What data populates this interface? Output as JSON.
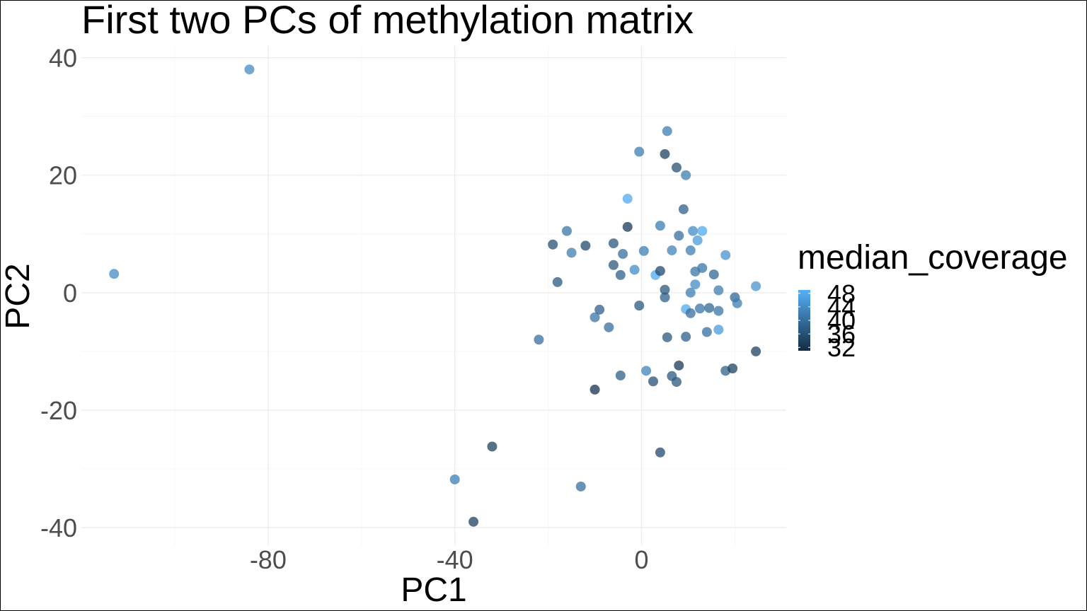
{
  "chart_data": {
    "type": "scatter",
    "title": "First two PCs of methylation matrix",
    "xlabel": "PC1",
    "ylabel": "PC2",
    "xlim": [
      -120,
      31
    ],
    "ylim": [
      -43,
      42
    ],
    "x_ticks": [
      -80,
      -40,
      0
    ],
    "x_tick_labels": [
      "-80",
      "-40",
      "0"
    ],
    "y_ticks": [
      -40,
      -20,
      0,
      20,
      40
    ],
    "y_tick_labels": [
      "-40",
      "-20",
      "0",
      "20",
      "40"
    ],
    "grid": true,
    "legend": {
      "title": "median_coverage",
      "placement": "right",
      "type": "colorbar",
      "ticks": [
        32,
        36,
        40,
        44,
        48
      ],
      "tick_labels": [
        "32",
        "36",
        "40",
        "44",
        "48"
      ],
      "range": [
        31,
        49
      ],
      "colors": [
        "#132b43",
        "#56b1f7"
      ]
    },
    "point_opacity": 0.75,
    "points": [
      {
        "x": -113,
        "y": 3.2,
        "c": 44
      },
      {
        "x": -84,
        "y": 38,
        "c": 44
      },
      {
        "x": -40,
        "y": -31.8,
        "c": 42
      },
      {
        "x": -36,
        "y": -39,
        "c": 34
      },
      {
        "x": -32,
        "y": -26.2,
        "c": 34
      },
      {
        "x": -22,
        "y": -8,
        "c": 40
      },
      {
        "x": -19,
        "y": 8.2,
        "c": 36
      },
      {
        "x": -18,
        "y": 1.8,
        "c": 37
      },
      {
        "x": -16,
        "y": 10.5,
        "c": 41
      },
      {
        "x": -15,
        "y": 6.8,
        "c": 42
      },
      {
        "x": -13,
        "y": -33,
        "c": 40
      },
      {
        "x": -12,
        "y": 8,
        "c": 35
      },
      {
        "x": -10,
        "y": -4.2,
        "c": 41
      },
      {
        "x": -10,
        "y": -16.5,
        "c": 32
      },
      {
        "x": -9,
        "y": -2.9,
        "c": 38
      },
      {
        "x": -7,
        "y": -5.9,
        "c": 40
      },
      {
        "x": -6,
        "y": 8.4,
        "c": 37
      },
      {
        "x": -6,
        "y": 4.7,
        "c": 37
      },
      {
        "x": -4.5,
        "y": 3,
        "c": 38
      },
      {
        "x": -4.5,
        "y": -14.1,
        "c": 38
      },
      {
        "x": -4,
        "y": 6.6,
        "c": 40
      },
      {
        "x": -3,
        "y": 11.2,
        "c": 33
      },
      {
        "x": -3,
        "y": 16,
        "c": 48
      },
      {
        "x": -1.5,
        "y": 3.9,
        "c": 44
      },
      {
        "x": -0.5,
        "y": 24,
        "c": 42
      },
      {
        "x": -0.5,
        "y": -2.2,
        "c": 37
      },
      {
        "x": 0.5,
        "y": 7.1,
        "c": 42
      },
      {
        "x": 1,
        "y": -13.3,
        "c": 43
      },
      {
        "x": 2.5,
        "y": -15.1,
        "c": 36
      },
      {
        "x": 3,
        "y": 3,
        "c": 48
      },
      {
        "x": 4,
        "y": 11.4,
        "c": 42
      },
      {
        "x": 4,
        "y": 3.7,
        "c": 35
      },
      {
        "x": 4,
        "y": -27.2,
        "c": 35
      },
      {
        "x": 5,
        "y": 23.6,
        "c": 34
      },
      {
        "x": 5,
        "y": -0.8,
        "c": 38
      },
      {
        "x": 5,
        "y": 0.5,
        "c": 37
      },
      {
        "x": 5.5,
        "y": 27.5,
        "c": 42
      },
      {
        "x": 5.5,
        "y": -7.6,
        "c": 37
      },
      {
        "x": 6.5,
        "y": 7.2,
        "c": 43
      },
      {
        "x": 6.5,
        "y": -14.2,
        "c": 37
      },
      {
        "x": 7.5,
        "y": 21.3,
        "c": 36
      },
      {
        "x": 7.5,
        "y": -15.2,
        "c": 37
      },
      {
        "x": 8,
        "y": -12.4,
        "c": 33
      },
      {
        "x": 8,
        "y": 9.7,
        "c": 40
      },
      {
        "x": 9,
        "y": 14.2,
        "c": 38
      },
      {
        "x": 9.5,
        "y": 20,
        "c": 42
      },
      {
        "x": 9.5,
        "y": -2.8,
        "c": 48
      },
      {
        "x": 9.5,
        "y": -7.5,
        "c": 38
      },
      {
        "x": 10.5,
        "y": 0,
        "c": 42
      },
      {
        "x": 10.5,
        "y": 7.2,
        "c": 42
      },
      {
        "x": 10.5,
        "y": -3.5,
        "c": 40
      },
      {
        "x": 11,
        "y": 10.5,
        "c": 44
      },
      {
        "x": 11.5,
        "y": 1.4,
        "c": 44
      },
      {
        "x": 11.5,
        "y": 3.6,
        "c": 41
      },
      {
        "x": 12,
        "y": 8.9,
        "c": 46
      },
      {
        "x": 12.5,
        "y": -2.7,
        "c": 41
      },
      {
        "x": 13,
        "y": 4.2,
        "c": 41
      },
      {
        "x": 13,
        "y": 10.5,
        "c": 48
      },
      {
        "x": 14,
        "y": -6.7,
        "c": 40
      },
      {
        "x": 14.5,
        "y": -2.6,
        "c": 39
      },
      {
        "x": 15.5,
        "y": 3.1,
        "c": 39
      },
      {
        "x": 16.5,
        "y": -3.1,
        "c": 41
      },
      {
        "x": 16.5,
        "y": 0.4,
        "c": 42
      },
      {
        "x": 16.5,
        "y": -6.3,
        "c": 46
      },
      {
        "x": 18,
        "y": 6.4,
        "c": 45
      },
      {
        "x": 18,
        "y": -13.3,
        "c": 38
      },
      {
        "x": 19.5,
        "y": -12.9,
        "c": 34
      },
      {
        "x": 20,
        "y": -0.8,
        "c": 39
      },
      {
        "x": 20.5,
        "y": -1.8,
        "c": 42
      },
      {
        "x": 24.5,
        "y": 1.1,
        "c": 45
      },
      {
        "x": 24.5,
        "y": -10,
        "c": 34
      }
    ]
  }
}
